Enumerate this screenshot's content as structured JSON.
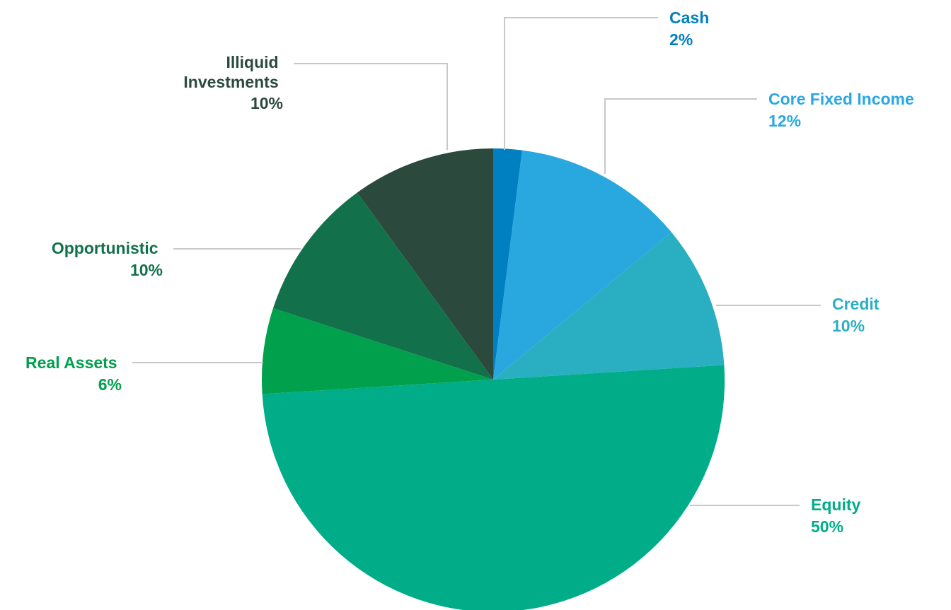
{
  "chart_data": {
    "type": "pie",
    "slices": [
      {
        "name": "Cash",
        "value": 2,
        "label": "2%",
        "color": "#0080C0"
      },
      {
        "name": "Core Fixed Income",
        "value": 12,
        "label": "12%",
        "color": "#29A8E0"
      },
      {
        "name": "Credit",
        "value": 10,
        "label": "10%",
        "color": "#2AAFC2"
      },
      {
        "name": "Equity",
        "value": 50,
        "label": "50%",
        "color": "#00AD88"
      },
      {
        "name": "Real Assets",
        "value": 6,
        "label": "6%",
        "color": "#00A04D"
      },
      {
        "name": "Opportunistic",
        "value": 10,
        "label": "10%",
        "color": "#12714B"
      },
      {
        "name": "Illiquid Investments",
        "value": 10,
        "label": "10%",
        "color": "#2B4A3D"
      }
    ],
    "start": "top",
    "direction": "clockwise",
    "leader_line_color": "#c8c8c8"
  }
}
